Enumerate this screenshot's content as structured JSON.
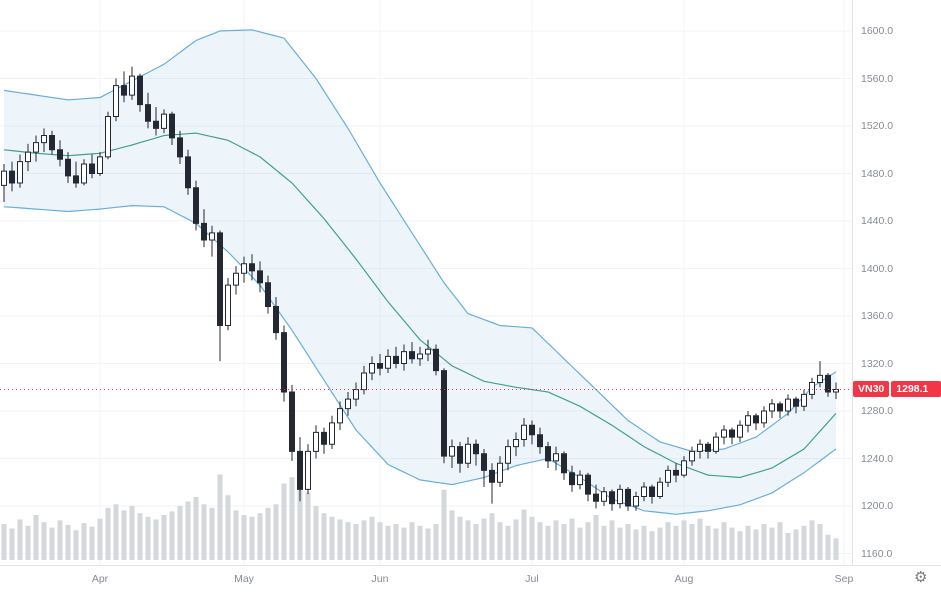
{
  "chart_data": {
    "type": "candlestick",
    "symbol": "VN30",
    "last_price_label": "1298.1",
    "last_price": 1298.1,
    "ylim": [
      1160,
      1600
    ],
    "y_axis": {
      "values": [
        1600,
        1560,
        1520,
        1480,
        1440,
        1400,
        1360,
        1320,
        1280,
        1240,
        1200,
        1160
      ],
      "labels": [
        "1600.0",
        "1560.0",
        "1520.0",
        "1480.0",
        "1440.0",
        "1400.0",
        "1360.0",
        "1320.0",
        "1280.0",
        "1240.0",
        "1200.0",
        "1160.0"
      ]
    },
    "x_axis": {
      "month_ticks": [
        {
          "label": "Apr",
          "i": 12
        },
        {
          "label": "May",
          "i": 30
        },
        {
          "label": "Jun",
          "i": 47
        },
        {
          "label": "Jul",
          "i": 66
        },
        {
          "label": "Aug",
          "i": 85
        },
        {
          "label": "Sep",
          "i": 105
        }
      ]
    },
    "ohlc": [
      [
        1470,
        1488,
        1456,
        1482
      ],
      [
        1482,
        1490,
        1465,
        1472
      ],
      [
        1472,
        1496,
        1468,
        1490
      ],
      [
        1490,
        1505,
        1482,
        1498
      ],
      [
        1498,
        1512,
        1490,
        1506
      ],
      [
        1506,
        1518,
        1498,
        1512
      ],
      [
        1512,
        1516,
        1496,
        1500
      ],
      [
        1500,
        1508,
        1486,
        1492
      ],
      [
        1492,
        1498,
        1472,
        1478
      ],
      [
        1478,
        1490,
        1468,
        1472
      ],
      [
        1472,
        1492,
        1470,
        1488
      ],
      [
        1488,
        1496,
        1476,
        1480
      ],
      [
        1480,
        1498,
        1478,
        1494
      ],
      [
        1494,
        1532,
        1492,
        1528
      ],
      [
        1528,
        1560,
        1524,
        1554
      ],
      [
        1554,
        1566,
        1540,
        1546
      ],
      [
        1546,
        1570,
        1542,
        1562
      ],
      [
        1562,
        1564,
        1532,
        1538
      ],
      [
        1538,
        1548,
        1518,
        1524
      ],
      [
        1524,
        1536,
        1512,
        1518
      ],
      [
        1518,
        1534,
        1514,
        1530
      ],
      [
        1530,
        1532,
        1504,
        1510
      ],
      [
        1510,
        1516,
        1488,
        1494
      ],
      [
        1494,
        1500,
        1462,
        1468
      ],
      [
        1468,
        1474,
        1432,
        1438
      ],
      [
        1438,
        1450,
        1418,
        1424
      ],
      [
        1424,
        1436,
        1410,
        1430
      ],
      [
        1430,
        1432,
        1322,
        1352
      ],
      [
        1352,
        1392,
        1348,
        1386
      ],
      [
        1386,
        1402,
        1378,
        1396
      ],
      [
        1396,
        1410,
        1388,
        1404
      ],
      [
        1404,
        1412,
        1390,
        1398
      ],
      [
        1398,
        1406,
        1380,
        1388
      ],
      [
        1388,
        1394,
        1362,
        1368
      ],
      [
        1368,
        1376,
        1340,
        1346
      ],
      [
        1346,
        1352,
        1288,
        1296
      ],
      [
        1296,
        1302,
        1238,
        1246
      ],
      [
        1246,
        1258,
        1204,
        1214
      ],
      [
        1214,
        1252,
        1210,
        1246
      ],
      [
        1246,
        1268,
        1240,
        1262
      ],
      [
        1262,
        1266,
        1244,
        1252
      ],
      [
        1252,
        1276,
        1248,
        1270
      ],
      [
        1270,
        1288,
        1264,
        1282
      ],
      [
        1282,
        1296,
        1276,
        1290
      ],
      [
        1290,
        1304,
        1284,
        1298
      ],
      [
        1298,
        1318,
        1294,
        1312
      ],
      [
        1312,
        1326,
        1306,
        1320
      ],
      [
        1320,
        1328,
        1310,
        1316
      ],
      [
        1316,
        1332,
        1312,
        1326
      ],
      [
        1326,
        1334,
        1316,
        1320
      ],
      [
        1320,
        1336,
        1314,
        1330
      ],
      [
        1330,
        1338,
        1320,
        1324
      ],
      [
        1324,
        1334,
        1318,
        1328
      ],
      [
        1328,
        1340,
        1322,
        1332
      ],
      [
        1332,
        1336,
        1310,
        1314
      ],
      [
        1314,
        1316,
        1236,
        1242
      ],
      [
        1242,
        1256,
        1232,
        1250
      ],
      [
        1250,
        1254,
        1228,
        1236
      ],
      [
        1236,
        1258,
        1232,
        1252
      ],
      [
        1252,
        1256,
        1234,
        1244
      ],
      [
        1244,
        1248,
        1216,
        1230
      ],
      [
        1230,
        1236,
        1202,
        1220
      ],
      [
        1220,
        1242,
        1216,
        1236
      ],
      [
        1236,
        1256,
        1230,
        1250
      ],
      [
        1250,
        1262,
        1242,
        1256
      ],
      [
        1256,
        1274,
        1250,
        1268
      ],
      [
        1268,
        1272,
        1252,
        1260
      ],
      [
        1260,
        1266,
        1244,
        1250
      ],
      [
        1250,
        1254,
        1232,
        1238
      ],
      [
        1238,
        1250,
        1230,
        1244
      ],
      [
        1244,
        1246,
        1222,
        1228
      ],
      [
        1228,
        1234,
        1212,
        1218
      ],
      [
        1218,
        1230,
        1214,
        1226
      ],
      [
        1226,
        1228,
        1204,
        1210
      ],
      [
        1210,
        1218,
        1198,
        1204
      ],
      [
        1204,
        1216,
        1200,
        1212
      ],
      [
        1212,
        1214,
        1196,
        1202
      ],
      [
        1202,
        1218,
        1198,
        1214
      ],
      [
        1214,
        1216,
        1196,
        1200
      ],
      [
        1200,
        1212,
        1196,
        1208
      ],
      [
        1208,
        1220,
        1204,
        1216
      ],
      [
        1216,
        1218,
        1202,
        1208
      ],
      [
        1208,
        1224,
        1206,
        1220
      ],
      [
        1220,
        1234,
        1216,
        1230
      ],
      [
        1230,
        1236,
        1220,
        1226
      ],
      [
        1226,
        1242,
        1224,
        1238
      ],
      [
        1238,
        1250,
        1234,
        1246
      ],
      [
        1246,
        1256,
        1240,
        1252
      ],
      [
        1252,
        1254,
        1240,
        1246
      ],
      [
        1246,
        1262,
        1244,
        1258
      ],
      [
        1258,
        1268,
        1252,
        1264
      ],
      [
        1264,
        1266,
        1252,
        1258
      ],
      [
        1258,
        1272,
        1254,
        1268
      ],
      [
        1268,
        1280,
        1262,
        1276
      ],
      [
        1276,
        1278,
        1264,
        1270
      ],
      [
        1270,
        1284,
        1266,
        1280
      ],
      [
        1280,
        1290,
        1274,
        1286
      ],
      [
        1286,
        1288,
        1274,
        1280
      ],
      [
        1280,
        1294,
        1276,
        1290
      ],
      [
        1290,
        1292,
        1278,
        1284
      ],
      [
        1284,
        1298,
        1280,
        1294
      ],
      [
        1294,
        1308,
        1290,
        1304
      ],
      [
        1304,
        1322,
        1300,
        1310
      ],
      [
        1310,
        1312,
        1292,
        1296
      ],
      [
        1296,
        1304,
        1290,
        1298.1
      ]
    ],
    "volume": [
      40,
      35,
      45,
      38,
      50,
      42,
      36,
      44,
      39,
      33,
      41,
      37,
      46,
      58,
      62,
      55,
      60,
      52,
      48,
      45,
      50,
      54,
      60,
      65,
      70,
      62,
      58,
      95,
      72,
      55,
      50,
      48,
      52,
      58,
      62,
      85,
      92,
      98,
      75,
      60,
      52,
      48,
      45,
      42,
      40,
      44,
      48,
      42,
      38,
      40,
      36,
      42,
      38,
      35,
      40,
      78,
      55,
      48,
      44,
      40,
      46,
      52,
      42,
      38,
      45,
      56,
      48,
      42,
      38,
      44,
      40,
      46,
      36,
      42,
      50,
      38,
      44,
      36,
      40,
      34,
      38,
      32,
      36,
      42,
      38,
      44,
      40,
      46,
      38,
      35,
      42,
      36,
      32,
      38,
      34,
      40,
      36,
      42,
      30,
      34,
      38,
      44,
      40,
      28,
      24
    ],
    "bollinger": {
      "upper": [
        [
          0,
          1550
        ],
        [
          4,
          1546
        ],
        [
          8,
          1542
        ],
        [
          12,
          1544
        ],
        [
          16,
          1558
        ],
        [
          20,
          1572
        ],
        [
          24,
          1592
        ],
        [
          27,
          1600
        ],
        [
          31,
          1601
        ],
        [
          35,
          1594
        ],
        [
          39,
          1560
        ],
        [
          43,
          1518
        ],
        [
          47,
          1472
        ],
        [
          51,
          1430
        ],
        [
          55,
          1388
        ],
        [
          58,
          1362
        ],
        [
          62,
          1352
        ],
        [
          66,
          1350
        ],
        [
          70,
          1324
        ],
        [
          74,
          1298
        ],
        [
          78,
          1272
        ],
        [
          82,
          1254
        ],
        [
          86,
          1246
        ],
        [
          90,
          1248
        ],
        [
          94,
          1258
        ],
        [
          98,
          1278
        ],
        [
          101,
          1300
        ],
        [
          104,
          1313
        ]
      ],
      "middle": [
        [
          0,
          1500
        ],
        [
          4,
          1497
        ],
        [
          8,
          1495
        ],
        [
          12,
          1497
        ],
        [
          16,
          1504
        ],
        [
          20,
          1512
        ],
        [
          24,
          1514
        ],
        [
          28,
          1508
        ],
        [
          32,
          1494
        ],
        [
          36,
          1472
        ],
        [
          40,
          1442
        ],
        [
          44,
          1408
        ],
        [
          48,
          1372
        ],
        [
          52,
          1340
        ],
        [
          56,
          1318
        ],
        [
          60,
          1305
        ],
        [
          64,
          1300
        ],
        [
          68,
          1296
        ],
        [
          72,
          1284
        ],
        [
          76,
          1268
        ],
        [
          80,
          1250
        ],
        [
          84,
          1236
        ],
        [
          88,
          1226
        ],
        [
          92,
          1224
        ],
        [
          96,
          1232
        ],
        [
          100,
          1248
        ],
        [
          104,
          1278
        ]
      ],
      "lower": [
        [
          0,
          1452
        ],
        [
          4,
          1450
        ],
        [
          8,
          1448
        ],
        [
          12,
          1450
        ],
        [
          16,
          1453
        ],
        [
          20,
          1452
        ],
        [
          24,
          1438
        ],
        [
          28,
          1414
        ],
        [
          32,
          1386
        ],
        [
          36,
          1348
        ],
        [
          40,
          1306
        ],
        [
          44,
          1264
        ],
        [
          48,
          1235
        ],
        [
          52,
          1222
        ],
        [
          56,
          1218
        ],
        [
          60,
          1224
        ],
        [
          64,
          1234
        ],
        [
          68,
          1240
        ],
        [
          72,
          1224
        ],
        [
          76,
          1206
        ],
        [
          80,
          1196
        ],
        [
          84,
          1193
        ],
        [
          88,
          1196
        ],
        [
          92,
          1201
        ],
        [
          96,
          1211
        ],
        [
          100,
          1228
        ],
        [
          104,
          1248
        ]
      ]
    },
    "colors": {
      "candle_up_fill": "#ffffff",
      "candle_down_fill": "#242832",
      "candle_stroke": "#242832",
      "band_line": "#68aeda",
      "band_fill": "rgba(103,169,219,0.12)",
      "band_middle": "#43a189",
      "volume_bar": "#d4d7dc",
      "grid": "#f0f3fa",
      "price_line": "#f23645",
      "tag_bg": "#f23645",
      "axis_text": "#868b94"
    }
  },
  "icons": {
    "settings_gear": "⚙"
  }
}
